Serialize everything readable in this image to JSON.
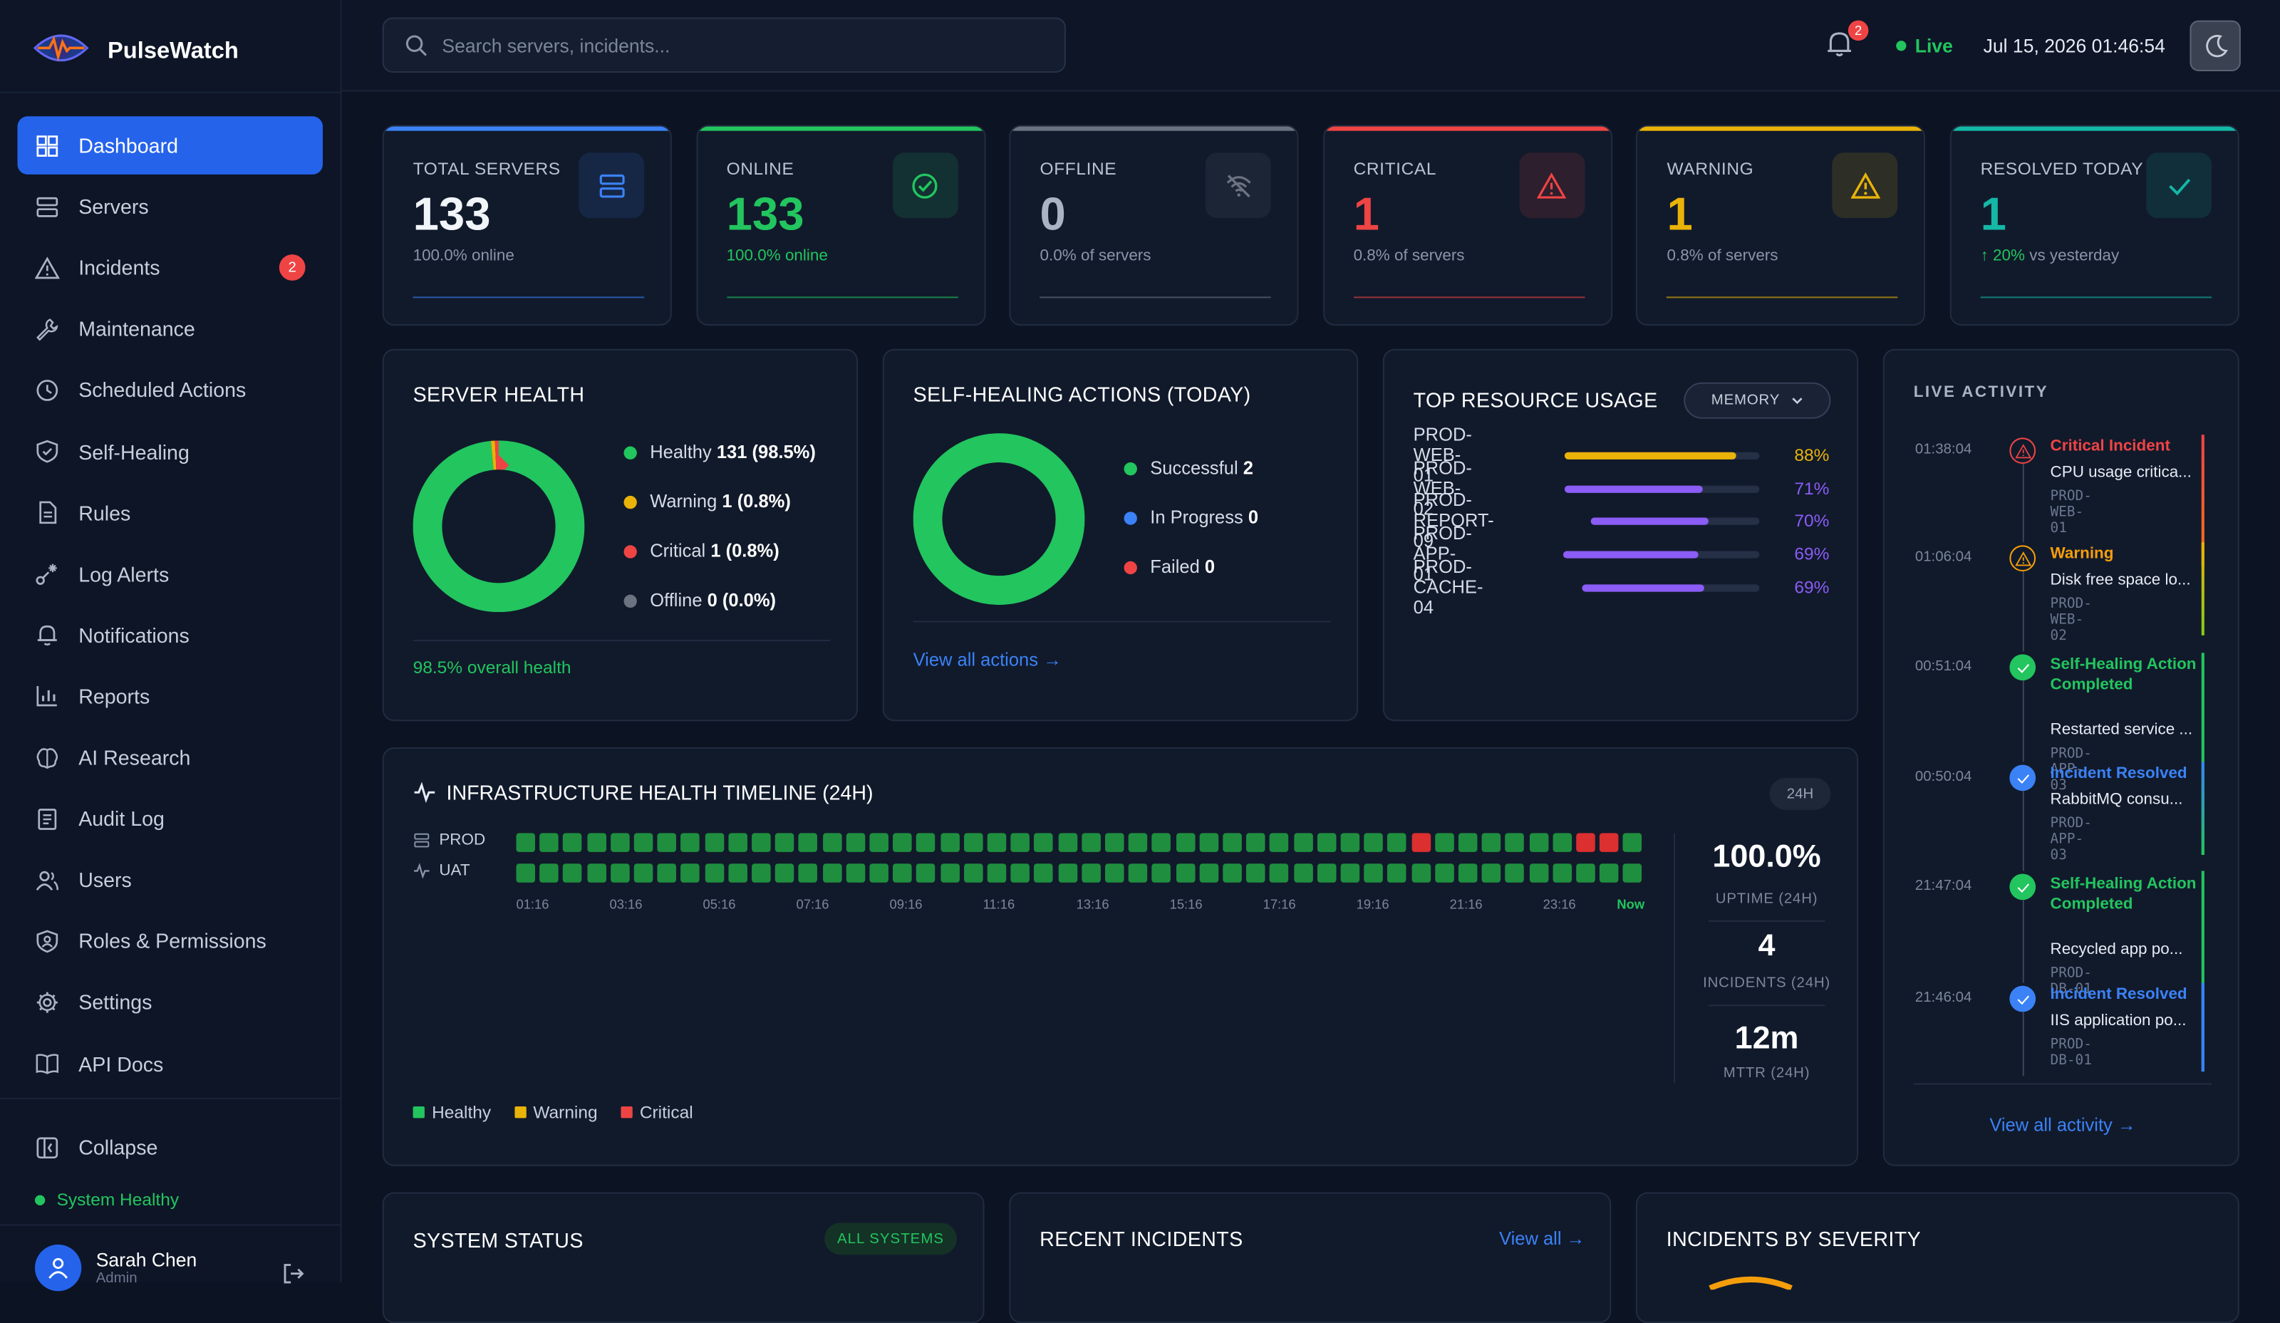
{
  "app": {
    "name": "PulseWatch"
  },
  "sidebar": {
    "items": [
      {
        "label": "Dashboard",
        "icon": "dashboard-icon",
        "active": true
      },
      {
        "label": "Servers",
        "icon": "server-icon"
      },
      {
        "label": "Incidents",
        "icon": "alert-triangle-icon",
        "badge": "2"
      },
      {
        "label": "Maintenance",
        "icon": "wrench-icon"
      },
      {
        "label": "Scheduled Actions",
        "icon": "clock-icon"
      },
      {
        "label": "Self-Healing",
        "icon": "shield-icon"
      },
      {
        "label": "Rules",
        "icon": "document-icon"
      },
      {
        "label": "Log Alerts",
        "icon": "log-alert-icon"
      },
      {
        "label": "Notifications",
        "icon": "bell-icon"
      },
      {
        "label": "Reports",
        "icon": "bar-chart-icon"
      },
      {
        "label": "AI Research",
        "icon": "brain-icon"
      },
      {
        "label": "Audit Log",
        "icon": "audit-log-icon"
      },
      {
        "label": "Users",
        "icon": "users-icon"
      },
      {
        "label": "Roles & Permissions",
        "icon": "shield-user-icon"
      },
      {
        "label": "Settings",
        "icon": "gear-icon"
      },
      {
        "label": "API Docs",
        "icon": "book-icon"
      }
    ],
    "collapse_label": "Collapse",
    "system_status": "System Healthy",
    "user": {
      "name": "Sarah Chen",
      "role": "Admin"
    }
  },
  "header": {
    "search_placeholder": "Search servers, incidents...",
    "notification_count": "2",
    "live_label": "Live",
    "datetime": "Jul 15, 2026 01:46:54"
  },
  "stats": [
    {
      "label": "TOTAL SERVERS",
      "value": "133",
      "sub": "100.0% online",
      "color": "#3b82f6",
      "icon": "server-icon"
    },
    {
      "label": "ONLINE",
      "value": "133",
      "sub": "100.0% online",
      "color": "#22c55e",
      "icon": "check-circle-icon"
    },
    {
      "label": "OFFLINE",
      "value": "0",
      "sub": "0.0% of servers",
      "color": "#6b7280",
      "icon": "wifi-off-icon"
    },
    {
      "label": "CRITICAL",
      "value": "1",
      "sub": "0.8% of servers",
      "color": "#ef4444",
      "icon": "alert-triangle-icon"
    },
    {
      "label": "WARNING",
      "value": "1",
      "sub": "0.8% of servers",
      "color": "#eab308",
      "icon": "warning-icon"
    },
    {
      "label": "RESOLVED TODAY",
      "value": "1",
      "sub_trend": "↑ 20%",
      "sub": "vs yesterday",
      "color": "#14b8a6",
      "icon": "check-icon"
    }
  ],
  "server_health": {
    "title": "SERVER HEALTH",
    "legend": [
      {
        "label": "Healthy",
        "value": "131 (98.5%)",
        "color": "#22c55e",
        "count": 131
      },
      {
        "label": "Warning",
        "value": "1 (0.8%)",
        "color": "#eab308",
        "count": 1
      },
      {
        "label": "Critical",
        "value": "1 (0.8%)",
        "color": "#ef4444",
        "count": 1
      },
      {
        "label": "Offline",
        "value": "0 (0.0%)",
        "color": "#6b7280",
        "count": 0
      }
    ],
    "footer": "98.5% overall health"
  },
  "self_healing": {
    "title": "SELF-HEALING ACTIONS (TODAY)",
    "legend": [
      {
        "label": "Successful",
        "value": "2",
        "color": "#22c55e",
        "count": 2
      },
      {
        "label": "In Progress",
        "value": "0",
        "color": "#3b82f6",
        "count": 0
      },
      {
        "label": "Failed",
        "value": "0",
        "color": "#ef4444",
        "count": 0
      }
    ],
    "link": "View all actions →"
  },
  "resource_usage": {
    "title": "TOP RESOURCE USAGE",
    "metric": "MEMORY",
    "rows": [
      {
        "name": "PROD-WEB-01",
        "pct": 88,
        "label": "88%",
        "color": "#eab308"
      },
      {
        "name": "PROD-WEB-02",
        "pct": 71,
        "label": "71%",
        "color": "#8b5cf6"
      },
      {
        "name": "PROD-REPORT-09",
        "pct": 70,
        "label": "70%",
        "color": "#8b5cf6"
      },
      {
        "name": "PROD-APP-01",
        "pct": 69,
        "label": "69%",
        "color": "#8b5cf6"
      },
      {
        "name": "PROD-CACHE-04",
        "pct": 69,
        "label": "69%",
        "color": "#8b5cf6"
      }
    ]
  },
  "live_activity": {
    "title": "LIVE ACTIVITY",
    "items": [
      {
        "time": "01:38:04",
        "title": "Critical Incident",
        "desc": "CPU usage critica...",
        "server": "PROD-WEB-01",
        "type": "critical"
      },
      {
        "time": "01:06:04",
        "title": "Warning",
        "desc": "Disk free space lo...",
        "server": "PROD-WEB-02",
        "type": "warning"
      },
      {
        "time": "00:51:04",
        "title": "Self-Healing Action Completed",
        "desc": "Restarted service ...",
        "server": "PROD-APP-03",
        "type": "success"
      },
      {
        "time": "00:50:04",
        "title": "Incident Resolved",
        "desc": "RabbitMQ consu...",
        "server": "PROD-APP-03",
        "type": "resolved"
      },
      {
        "time": "21:47:04",
        "title": "Self-Healing Action Completed",
        "desc": "Recycled app po...",
        "server": "PROD-DB-01",
        "type": "success"
      },
      {
        "time": "21:46:04",
        "title": "Incident Resolved",
        "desc": "IIS application po...",
        "server": "PROD-DB-01",
        "type": "resolved"
      }
    ],
    "link": "View all activity →"
  },
  "timeline": {
    "title": "INFRASTRUCTURE HEALTH TIMELINE (24H)",
    "range_badge": "24H",
    "rows": [
      {
        "label": "PROD",
        "critical_slots": [
          38,
          45,
          46
        ]
      },
      {
        "label": "UAT",
        "critical_slots": []
      }
    ],
    "slot_count": 48,
    "ticks": [
      "01:16",
      "03:16",
      "05:16",
      "07:16",
      "09:16",
      "11:16",
      "13:16",
      "15:16",
      "17:16",
      "19:16",
      "21:16",
      "23:16",
      "Now"
    ],
    "legend": [
      {
        "label": "Healthy",
        "color": "#22c55e"
      },
      {
        "label": "Warning",
        "color": "#eab308"
      },
      {
        "label": "Critical",
        "color": "#ef4444"
      }
    ],
    "kpis": [
      {
        "value": "100.0%",
        "label": "UPTIME (24H)"
      },
      {
        "value": "4",
        "label": "INCIDENTS (24H)"
      },
      {
        "value": "12m",
        "label": "MTTR (24H)"
      }
    ]
  },
  "bottom": {
    "system_status": {
      "title": "SYSTEM STATUS",
      "badge": "ALL SYSTEMS"
    },
    "recent_incidents": {
      "title": "RECENT INCIDENTS",
      "link": "View all →"
    },
    "by_severity": {
      "title": "INCIDENTS BY SEVERITY"
    }
  },
  "colors": {
    "accent": "#2563eb",
    "healthy": "#22c55e",
    "warning": "#eab308",
    "critical": "#ef4444",
    "info": "#3b82f6",
    "purple": "#8b5cf6"
  }
}
